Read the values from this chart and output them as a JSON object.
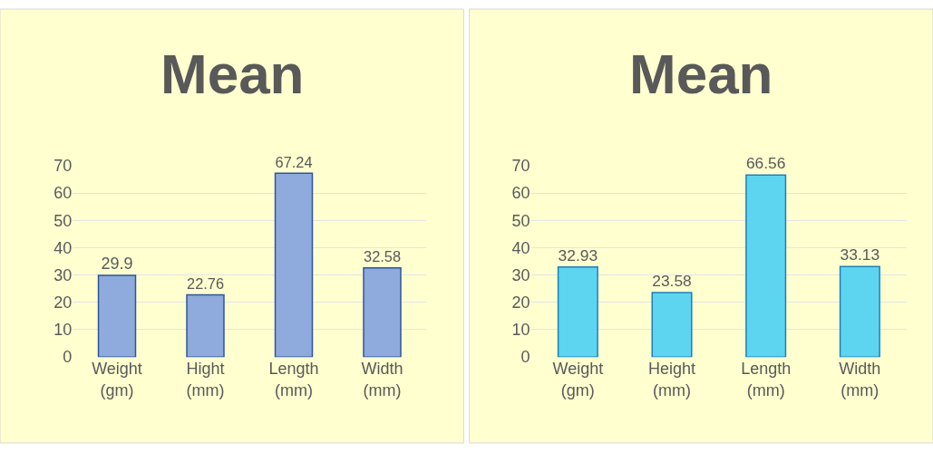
{
  "chart_data": [
    {
      "type": "bar",
      "title": "Mean",
      "categories": [
        "Weight (gm)",
        "Hight (mm)",
        "Length (mm)",
        "Width (mm)"
      ],
      "values": [
        29.9,
        22.76,
        67.24,
        32.58
      ],
      "color": "#8faadc",
      "ylim": [
        0,
        70
      ],
      "yticks": [
        0,
        10,
        20,
        30,
        40,
        50,
        60,
        70
      ],
      "grid": "y",
      "data_labels": true
    },
    {
      "type": "bar",
      "title": "Mean",
      "categories": [
        "Weight (gm)",
        "Height (mm)",
        "Length (mm)",
        "Width (mm)"
      ],
      "values": [
        32.93,
        23.58,
        66.56,
        33.13
      ],
      "color": "#5dd5f0",
      "ylim": [
        0,
        70
      ],
      "yticks": [
        0,
        10,
        20,
        30,
        40,
        50,
        60,
        70
      ],
      "grid": "y",
      "data_labels": true
    }
  ]
}
